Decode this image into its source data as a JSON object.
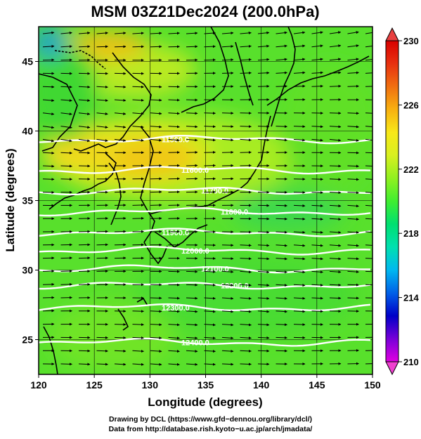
{
  "chart_data": {
    "type": "heatmap",
    "title": "MSM 03Z21Dec2024 (200.0hPa)",
    "xlabel": "Longitude (degrees)",
    "ylabel": "Latitude  (degrees)",
    "xlim": [
      120,
      150
    ],
    "ylim": [
      22.5,
      47.5
    ],
    "x_ticks": [
      "120",
      "125",
      "130",
      "135",
      "140",
      "145",
      "150"
    ],
    "y_ticks": [
      "25",
      "30",
      "35",
      "40",
      "45"
    ],
    "grid": true,
    "colorbar": {
      "position": "right",
      "min": 210,
      "max": 230,
      "ticks": [
        "210",
        "214",
        "218",
        "222",
        "226",
        "230"
      ],
      "colors": [
        "#e000e0",
        "#7800d8",
        "#0000c8",
        "#0060e8",
        "#00b8f0",
        "#00e0b0",
        "#00e070",
        "#40ee30",
        "#90f020",
        "#d8f020",
        "#f8e818",
        "#f8b010",
        "#f07010",
        "#e83010",
        "#d80000"
      ]
    },
    "contours": [
      {
        "label": "11500.0",
        "lat": 39.4
      },
      {
        "label": "11600.0",
        "lat": 37.2
      },
      {
        "label": "11700.0",
        "lat": 35.7
      },
      {
        "label": "11800.0",
        "lat": 34.2
      },
      {
        "label": "11900.0",
        "lat": 32.7
      },
      {
        "label": "12000.0",
        "lat": 31.4
      },
      {
        "label": "12100.0",
        "lat": 30.1
      },
      {
        "label": "12200.0",
        "lat": 28.9
      },
      {
        "label": "12300.0",
        "lat": 27.3
      },
      {
        "label": "12400.0",
        "lat": 24.8
      }
    ],
    "field_description": "temperature (K) shaded, geopotential height (m) contours, wind vectors"
  },
  "footer": {
    "line1": "Drawing by DCL (https://www.gfd−dennou.org/library/dcl/)",
    "line2": "Data from http://database.rish.kyoto−u.ac.jp/arch/jmadata/"
  }
}
